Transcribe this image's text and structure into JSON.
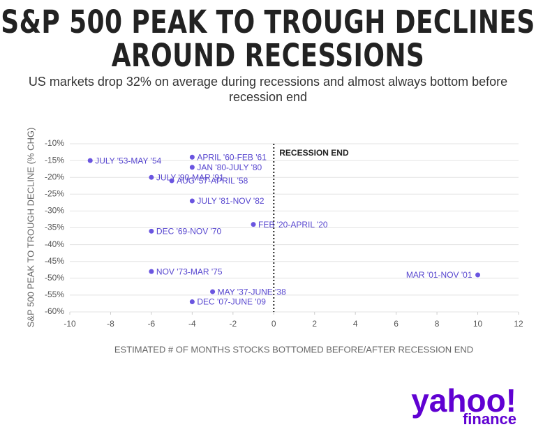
{
  "chart_data": {
    "type": "scatter",
    "title": "S&P 500 PEAK TO TROUGH DECLINES AROUND RECESSIONS",
    "subtitle": "US markets drop 32% on average during recessions and almost always bottom before recession end",
    "x_label": "ESTIMATED # OF MONTHS STOCKS BOTTOMED BEFORE/AFTER RECESSION END",
    "y_label": "S&P 500 PEAK TO TROUGH DECLINE (% CHG)",
    "color": "#6a55e0",
    "points": [
      {
        "label": "JULY '53-MAY '54",
        "x": -9,
        "y": -15
      },
      {
        "label": "APRIL '60-FEB '61",
        "x": -4,
        "y": -14
      },
      {
        "label": "JAN '80-JULY '80",
        "x": -4,
        "y": -17
      },
      {
        "label": "JULY '90-MAR '91",
        "x": -6,
        "y": -20
      },
      {
        "label": "AUG '57-APRIL '58",
        "x": -5,
        "y": -21
      },
      {
        "label": "JULY '81-NOV '82",
        "x": -4,
        "y": -27
      },
      {
        "label": "FEB '20-APRIL '20",
        "x": -1,
        "y": -34
      },
      {
        "label": "DEC '69-NOV '70",
        "x": -6,
        "y": -36
      },
      {
        "label": "NOV '73-MAR '75",
        "x": -6,
        "y": -48
      },
      {
        "label": "MAR '01-NOV '01",
        "x": 10,
        "y": -49
      },
      {
        "label": "MAY '37-JUNE '38",
        "x": -3,
        "y": -54
      },
      {
        "label": "DEC '07-JUNE '09",
        "x": -4,
        "y": -57
      }
    ],
    "reference_line": {
      "x": 0,
      "label": "RECESSION END"
    },
    "xlim": [
      -10,
      12
    ],
    "xticks": [
      -10,
      -8,
      -6,
      -4,
      -2,
      0,
      2,
      4,
      6,
      8,
      10,
      12
    ],
    "ylim": [
      -60,
      -10
    ],
    "yticks": [
      {
        "value": -10,
        "label": "-10%"
      },
      {
        "value": -15,
        "label": "-15%"
      },
      {
        "value": -20,
        "label": "-20%"
      },
      {
        "value": -25,
        "label": "-25%"
      },
      {
        "value": -30,
        "label": "-30%"
      },
      {
        "value": -35,
        "label": "-35%"
      },
      {
        "value": -40,
        "label": "-40%"
      },
      {
        "value": -45,
        "label": "-45%"
      },
      {
        "value": -50,
        "label": "-50%"
      },
      {
        "value": -55,
        "label": "-55%"
      },
      {
        "value": -60,
        "label": "-60%"
      }
    ],
    "grid": true,
    "logo": {
      "name": "yahoo!",
      "sub": "finance"
    }
  }
}
